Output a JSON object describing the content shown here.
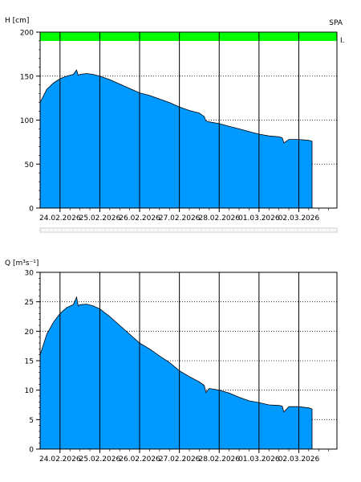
{
  "chart_data": [
    {
      "type": "area",
      "ylabel": "H [cm]",
      "corner_label": "SPA",
      "band_label": "I.",
      "ylim": [
        0,
        200
      ],
      "yticks": [
        0,
        50,
        100,
        150,
        200
      ],
      "band": {
        "from": 190,
        "to": 200,
        "color": "#00ff00"
      },
      "xlim": [
        "2026-02-23T12:00",
        "2026-03-02T23:00"
      ],
      "date_ticks": [
        "24.02.2026",
        "25.02.2026",
        "26.02.2026",
        "27.02.2026",
        "28.02.2026",
        "01.03.2026",
        "02.03.2026"
      ],
      "fill_color": "#0099ff",
      "series": [
        {
          "x": [
            "2026-02-23T12:00",
            "2026-02-23T16:00",
            "2026-02-23T20:00",
            "2026-02-24T00:00",
            "2026-02-24T04:00",
            "2026-02-24T08:00",
            "2026-02-24T10:00",
            "2026-02-24T11:00",
            "2026-02-24T12:00",
            "2026-02-24T16:00",
            "2026-02-24T20:00",
            "2026-02-25T00:00",
            "2026-02-25T06:00",
            "2026-02-25T12:00",
            "2026-02-25T18:00",
            "2026-02-26T00:00",
            "2026-02-26T06:00",
            "2026-02-26T12:00",
            "2026-02-26T18:00",
            "2026-02-27T00:00",
            "2026-02-27T06:00",
            "2026-02-27T12:00",
            "2026-02-27T15:00",
            "2026-02-27T16:00",
            "2026-02-27T18:00",
            "2026-02-28T00:00",
            "2026-02-28T06:00",
            "2026-02-28T12:00",
            "2026-02-28T18:00",
            "2026-03-01T00:00",
            "2026-03-01T06:00",
            "2026-03-01T12:00",
            "2026-03-01T14:00",
            "2026-03-01T15:00",
            "2026-03-01T18:00",
            "2026-03-02T00:00",
            "2026-03-02T06:00",
            "2026-03-02T08:00"
          ],
          "y": [
            120,
            135,
            142,
            147,
            150,
            152,
            157,
            151,
            152,
            153,
            152,
            150,
            146,
            141,
            136,
            131,
            128,
            124,
            120,
            115,
            111,
            108,
            104,
            99,
            98,
            96,
            93,
            90,
            87,
            84,
            82,
            81,
            80,
            74,
            78,
            78,
            77,
            76
          ]
        }
      ]
    },
    {
      "type": "area",
      "ylabel": "Q [m³s⁻¹]",
      "ylim": [
        0,
        30
      ],
      "yticks": [
        0,
        5,
        10,
        15,
        20,
        25,
        30
      ],
      "xlim": [
        "2026-02-23T12:00",
        "2026-03-02T23:00"
      ],
      "date_ticks": [
        "24.02.2026",
        "25.02.2026",
        "26.02.2026",
        "27.02.2026",
        "28.02.2026",
        "01.03.2026",
        "02.03.2026"
      ],
      "fill_color": "#0099ff",
      "series": [
        {
          "x": [
            "2026-02-23T12:00",
            "2026-02-23T16:00",
            "2026-02-23T20:00",
            "2026-02-24T00:00",
            "2026-02-24T04:00",
            "2026-02-24T08:00",
            "2026-02-24T10:00",
            "2026-02-24T11:00",
            "2026-02-24T12:00",
            "2026-02-24T16:00",
            "2026-02-24T20:00",
            "2026-02-25T00:00",
            "2026-02-25T06:00",
            "2026-02-25T12:00",
            "2026-02-25T18:00",
            "2026-02-26T00:00",
            "2026-02-26T06:00",
            "2026-02-26T12:00",
            "2026-02-26T18:00",
            "2026-02-27T00:00",
            "2026-02-27T06:00",
            "2026-02-27T12:00",
            "2026-02-27T15:00",
            "2026-02-27T16:00",
            "2026-02-27T18:00",
            "2026-02-28T00:00",
            "2026-02-28T06:00",
            "2026-02-28T12:00",
            "2026-02-28T18:00",
            "2026-03-01T00:00",
            "2026-03-01T06:00",
            "2026-03-01T12:00",
            "2026-03-01T14:00",
            "2026-03-01T15:00",
            "2026-03-01T18:00",
            "2026-03-02T00:00",
            "2026-03-02T06:00",
            "2026-03-02T08:00"
          ],
          "y": [
            16,
            19.5,
            21.5,
            23,
            24,
            24.5,
            25.8,
            24.3,
            24.5,
            24.6,
            24.3,
            23.8,
            22.5,
            21,
            19.5,
            18,
            17,
            15.8,
            14.7,
            13.3,
            12.3,
            11.4,
            10.8,
            9.6,
            10.3,
            10,
            9.5,
            8.8,
            8.2,
            7.9,
            7.5,
            7.4,
            7.3,
            6.3,
            7.2,
            7.2,
            7,
            6.8
          ]
        }
      ]
    }
  ]
}
